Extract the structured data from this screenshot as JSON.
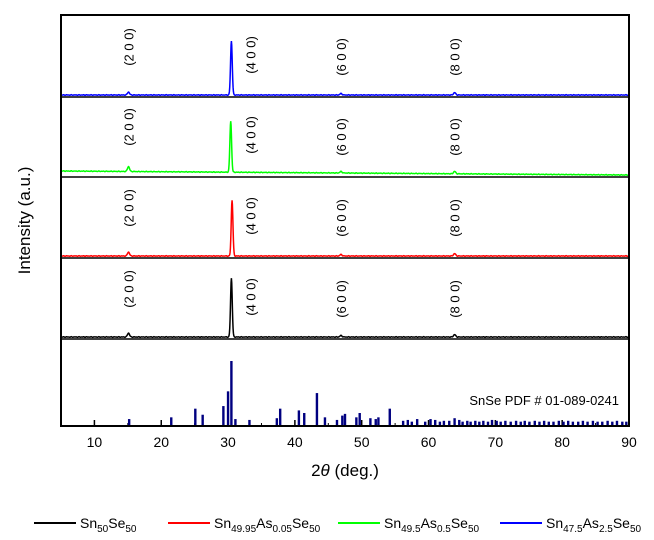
{
  "chart_data": {
    "type": "line",
    "xlabel_prefix": "2",
    "xlabel_theta": "θ",
    "xlabel_suffix": " (deg.)",
    "ylabel": "Intensity (a.u.)",
    "xlim": [
      5,
      90
    ],
    "x_ticks": [
      10,
      20,
      30,
      40,
      50,
      60,
      70,
      80,
      90
    ],
    "grid": false,
    "legend_position": "bottom",
    "peak_labels": [
      "(2 0 0)",
      "(4 0 0)",
      "(6 0 0)",
      "(8 0 0)"
    ],
    "peak_positions": [
      15.1,
      30.5,
      46.9,
      63.9
    ],
    "series": [
      {
        "name": "Sn50Se50",
        "legend": [
          {
            "t": "Sn",
            "sub": false
          },
          {
            "t": "50",
            "sub": true
          },
          {
            "t": "Se",
            "sub": false
          },
          {
            "t": "50",
            "sub": true
          }
        ],
        "color": "#000000",
        "baseline_slope": 0.0,
        "peaks": [
          [
            15.1,
            4
          ],
          [
            30.5,
            60
          ],
          [
            46.9,
            1.5
          ],
          [
            63.9,
            2.5
          ]
        ]
      },
      {
        "name": "Sn49.95As0.05Se50",
        "legend": [
          {
            "t": "Sn",
            "sub": false
          },
          {
            "t": "49.95",
            "sub": true
          },
          {
            "t": "As",
            "sub": false
          },
          {
            "t": "0.05",
            "sub": true
          },
          {
            "t": "Se",
            "sub": false
          },
          {
            "t": "50",
            "sub": true
          }
        ],
        "color": "#ff0000",
        "baseline_slope": 0.0,
        "peaks": [
          [
            15.1,
            4
          ],
          [
            30.6,
            57
          ],
          [
            46.9,
            1.5
          ],
          [
            63.9,
            2.5
          ]
        ]
      },
      {
        "name": "Sn49.5As0.5Se50",
        "legend": [
          {
            "t": "Sn",
            "sub": false
          },
          {
            "t": "49.5",
            "sub": true
          },
          {
            "t": "As",
            "sub": false
          },
          {
            "t": "0.5",
            "sub": true
          },
          {
            "t": "Se",
            "sub": false
          },
          {
            "t": "50",
            "sub": true
          }
        ],
        "color": "#00ff00",
        "baseline_slope": 4,
        "peaks": [
          [
            15.1,
            5
          ],
          [
            30.4,
            52
          ],
          [
            46.9,
            1.5
          ],
          [
            63.9,
            2.5
          ]
        ]
      },
      {
        "name": "Sn47.5As2.5Se50",
        "legend": [
          {
            "t": "Sn",
            "sub": false
          },
          {
            "t": "47.5",
            "sub": true
          },
          {
            "t": "As",
            "sub": false
          },
          {
            "t": "2.5",
            "sub": true
          },
          {
            "t": "Se",
            "sub": false
          },
          {
            "t": "50",
            "sub": true
          }
        ],
        "color": "#0000ff",
        "baseline_slope": 0.0,
        "peaks": [
          [
            15.1,
            3
          ],
          [
            30.5,
            55
          ],
          [
            46.9,
            1.5
          ],
          [
            63.9,
            2.5
          ]
        ]
      }
    ],
    "reference": {
      "label": "SnSe PDF # 01-089-0241",
      "color": "#000080",
      "sticks": [
        [
          15.2,
          8
        ],
        [
          21.5,
          10
        ],
        [
          25.1,
          20
        ],
        [
          26.2,
          13
        ],
        [
          29.3,
          23
        ],
        [
          30.0,
          40
        ],
        [
          30.5,
          75
        ],
        [
          31.1,
          8
        ],
        [
          33.2,
          7
        ],
        [
          37.3,
          9
        ],
        [
          37.8,
          20
        ],
        [
          40.6,
          18
        ],
        [
          41.4,
          15
        ],
        [
          43.3,
          38
        ],
        [
          44.5,
          10
        ],
        [
          46.3,
          7
        ],
        [
          47.1,
          12
        ],
        [
          47.5,
          14
        ],
        [
          49.2,
          10
        ],
        [
          49.7,
          15
        ],
        [
          51.3,
          9
        ],
        [
          52.1,
          8
        ],
        [
          52.5,
          10
        ],
        [
          54.2,
          20
        ],
        [
          56.2,
          6
        ],
        [
          56.9,
          7
        ],
        [
          57.5,
          5
        ],
        [
          58.3,
          8
        ],
        [
          59.5,
          5
        ],
        [
          60.3,
          8
        ],
        [
          61.0,
          7
        ],
        [
          61.7,
          5
        ],
        [
          62.3,
          6
        ],
        [
          63.1,
          6
        ],
        [
          63.9,
          9
        ],
        [
          64.6,
          7
        ],
        [
          65.1,
          5
        ],
        [
          65.8,
          6
        ],
        [
          66.3,
          5
        ],
        [
          67.0,
          6
        ],
        [
          67.6,
          5
        ],
        [
          68.2,
          6
        ],
        [
          68.9,
          5
        ],
        [
          69.5,
          7
        ],
        [
          70.2,
          6
        ],
        [
          70.8,
          5
        ],
        [
          71.5,
          6
        ],
        [
          72.3,
          5
        ],
        [
          73.1,
          6
        ],
        [
          73.8,
          5
        ],
        [
          74.4,
          6
        ],
        [
          75.1,
          5
        ],
        [
          75.9,
          6
        ],
        [
          76.6,
          5
        ],
        [
          77.3,
          6
        ],
        [
          78.0,
          5
        ],
        [
          78.7,
          5
        ],
        [
          79.5,
          6
        ],
        [
          80.2,
          5
        ],
        [
          80.9,
          6
        ],
        [
          81.6,
          5
        ],
        [
          82.4,
          5
        ],
        [
          83.1,
          6
        ],
        [
          83.8,
          5
        ],
        [
          84.6,
          6
        ],
        [
          85.3,
          5
        ],
        [
          86.0,
          5
        ],
        [
          86.8,
          6
        ],
        [
          87.5,
          5
        ],
        [
          88.2,
          6
        ],
        [
          89.0,
          5
        ],
        [
          89.6,
          5
        ]
      ]
    }
  }
}
